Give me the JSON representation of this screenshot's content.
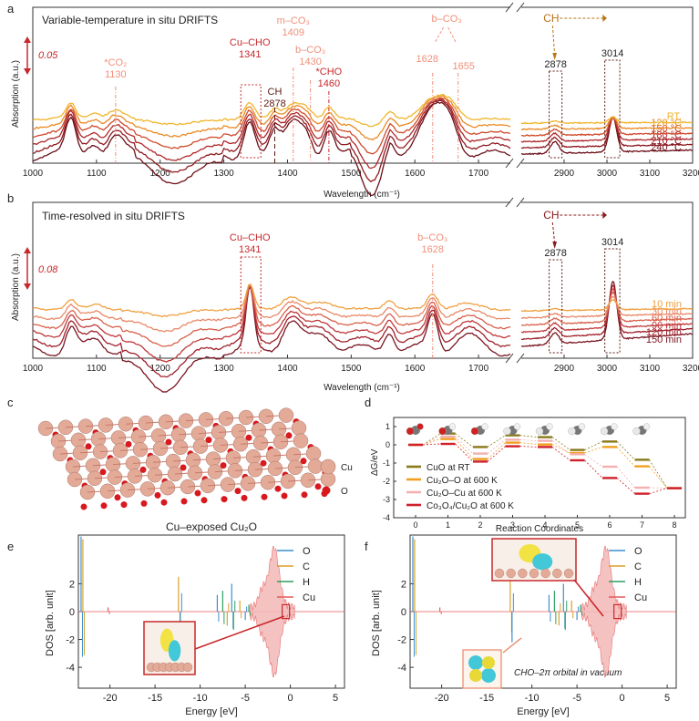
{
  "chart_data": [
    {
      "id": "a",
      "type": "line",
      "panel_label": "a",
      "title": "Variable-temperature in situ DRIFTS",
      "xlabel": "Wavelength (cm⁻¹)",
      "ylabel": "Absorption (a.u.)",
      "scale_bar": "0.05",
      "xlim_left": [
        1000,
        1750
      ],
      "xlim_right": [
        2800,
        3200
      ],
      "ticks_left": [
        "1000",
        "1100",
        "1200",
        "1300",
        "1400",
        "1500",
        "1600",
        "1700"
      ],
      "ticks_left_values": [
        1000,
        1100,
        1200,
        1300,
        1400,
        1500,
        1600,
        1700
      ],
      "ticks_right": [
        "2900",
        "3000",
        "3100",
        "3200"
      ],
      "ticks_right_values": [
        2900,
        3000,
        3100,
        3200
      ],
      "annotations": [
        {
          "text": "*CO₂",
          "text2": "1130",
          "x": 1130,
          "color": "#f08f7a"
        },
        {
          "text": "Cu–CHO",
          "text2": "1341",
          "x": 1341,
          "color": "#c8282b"
        },
        {
          "text": "CH",
          "text2": "2878",
          "x": 1380,
          "color": "#5a1a12"
        },
        {
          "text": "m–CO₃",
          "text2": "1409",
          "x": 1409,
          "color": "#f08f7a"
        },
        {
          "text": "b–CO₃",
          "text2": "1430",
          "x": 1436,
          "color": "#f08f7a"
        },
        {
          "text": "*CHO",
          "text2": "1460",
          "x": 1465,
          "color": "#c8282b"
        },
        {
          "text": "b–CO₃",
          "text2": "",
          "x": 1650,
          "color": "#f08f7a"
        },
        {
          "text": "1628",
          "text2": "",
          "x": 1628,
          "color": "#f08f7a"
        },
        {
          "text": "1655",
          "text2": "",
          "x": 1668,
          "color": "#f08f7a"
        }
      ],
      "right_annotations": {
        "ch": "CH",
        "v1": "2878",
        "v2": "3014"
      },
      "series": [
        {
          "name": "240 °C",
          "color": "#6b0f18"
        },
        {
          "name": "210 °C",
          "color": "#8f1a20"
        },
        {
          "name": "180 °C",
          "color": "#b0282a"
        },
        {
          "name": "150 °C",
          "color": "#d04a2a"
        },
        {
          "name": "120 °C",
          "color": "#e98a25"
        },
        {
          "name": "RT.",
          "color": "#f0b52a"
        }
      ]
    },
    {
      "id": "b",
      "type": "line",
      "panel_label": "b",
      "title": "Time-resolved in situ DRIFTS",
      "xlabel": "Wavelength (cm⁻¹)",
      "ylabel": "Absorption (a.u.)",
      "scale_bar": "0.08",
      "xlim_left": [
        1000,
        1750
      ],
      "xlim_right": [
        2800,
        3200
      ],
      "ticks_left": [
        "1000",
        "1100",
        "1200",
        "1300",
        "1400",
        "1500",
        "1600",
        "1700"
      ],
      "ticks_left_values": [
        1000,
        1100,
        1200,
        1300,
        1400,
        1500,
        1600,
        1700
      ],
      "ticks_right": [
        "2900",
        "3000",
        "3100",
        "3200"
      ],
      "ticks_right_values": [
        2900,
        3000,
        3100,
        3200
      ],
      "annotations": [
        {
          "text": "Cu–CHO",
          "text2": "1341",
          "x": 1341,
          "color": "#c8282b"
        },
        {
          "text": "b–CO₃",
          "text2": "1628",
          "x": 1628,
          "color": "#f08f7a"
        }
      ],
      "right_annotations": {
        "ch": "CH",
        "v1": "2878",
        "v2": "3014"
      },
      "series": [
        {
          "name": "150 min",
          "color": "#7a1520"
        },
        {
          "name": "120 min",
          "color": "#a0202a"
        },
        {
          "name": "90 min",
          "color": "#c0383a"
        },
        {
          "name": "60 min",
          "color": "#d8604a"
        },
        {
          "name": "30 min",
          "color": "#e88866"
        },
        {
          "name": "10 min",
          "color": "#f0a040"
        }
      ]
    },
    {
      "id": "c",
      "type": "other",
      "panel_label": "c",
      "caption": "Cu–exposed Cu₂O",
      "legend": [
        {
          "name": "Cu",
          "color": "#e0a592"
        },
        {
          "name": "O",
          "color": "#d8191e"
        }
      ]
    },
    {
      "id": "d",
      "type": "line",
      "panel_label": "d",
      "xlabel": "Reaction Coordinates",
      "ylabel": "ΔG/eV",
      "x_ticks": [
        "0",
        "1",
        "2",
        "3",
        "4",
        "5",
        "6",
        "7",
        "8"
      ],
      "y_ticks": [
        "1",
        "0",
        "-1",
        "-2",
        "-3",
        "-4"
      ],
      "ylim": [
        -4,
        1.5
      ],
      "series": [
        {
          "name": "CuO at RT",
          "color": "#8a7a1a",
          "values": [
            0,
            0.62,
            -0.12,
            0.52,
            0.42,
            -0.28,
            0.18,
            -0.82,
            -2.38
          ]
        },
        {
          "name": "Cu₂O–O at 600 K",
          "color": "#f0a020",
          "values": [
            0,
            0.32,
            -0.78,
            0.12,
            0.02,
            -0.45,
            -0.12,
            -1.18,
            -2.38
          ]
        },
        {
          "name": "Cu₂O–Cu at 600 K",
          "color": "#f3b0b0",
          "values": [
            0,
            0.45,
            -0.48,
            0.28,
            0.22,
            -0.52,
            -1.2,
            -2.35,
            -2.38
          ]
        },
        {
          "name": "Co₃O₄/Cu₂O at 600 K",
          "color": "#d0202a",
          "values": [
            0,
            0.05,
            -0.92,
            -0.08,
            -0.12,
            -0.85,
            -1.82,
            -2.68,
            -2.38
          ]
        }
      ]
    },
    {
      "id": "e",
      "type": "line",
      "panel_label": "e",
      "xlabel": "Energy [eV]",
      "ylabel": "DOS [arb. unit]",
      "x_ticks": [
        "-20",
        "-15",
        "-10",
        "-5",
        "0",
        "5"
      ],
      "x_tick_values": [
        -20,
        -15,
        -10,
        -5,
        0,
        5
      ],
      "y_ticks": [
        "2",
        "0",
        "-2",
        "-4"
      ],
      "y_tick_values": [
        2,
        0,
        -2,
        -4
      ],
      "xlim": [
        -23.5,
        6
      ],
      "ylim": [
        -5.5,
        5.5
      ],
      "series": [
        {
          "name": "O",
          "color": "#3a8fd0"
        },
        {
          "name": "C",
          "color": "#d9a02a"
        },
        {
          "name": "H",
          "color": "#2aa060"
        },
        {
          "name": "Cu",
          "color": "#e45a5a"
        }
      ]
    },
    {
      "id": "f",
      "type": "line",
      "panel_label": "f",
      "xlabel": "Energy [eV]",
      "ylabel": "DOS [arb. unit]",
      "x_ticks": [
        "-20",
        "-15",
        "-10",
        "-5",
        "0",
        "5"
      ],
      "x_tick_values": [
        -20,
        -15,
        -10,
        -5,
        0,
        5
      ],
      "y_ticks": [
        "2",
        "0",
        "-2",
        "-4"
      ],
      "y_tick_values": [
        2,
        0,
        -2,
        -4
      ],
      "xlim": [
        -23.5,
        6
      ],
      "ylim": [
        -5.5,
        5.5
      ],
      "note": "CHO–2π orbital in vacuum",
      "series": [
        {
          "name": "O",
          "color": "#3a8fd0"
        },
        {
          "name": "C",
          "color": "#d9a02a"
        },
        {
          "name": "H",
          "color": "#2aa060"
        },
        {
          "name": "Cu",
          "color": "#e45a5a"
        }
      ]
    }
  ]
}
